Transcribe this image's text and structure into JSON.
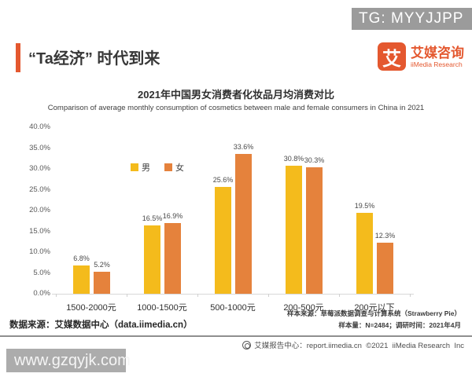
{
  "watermarks": {
    "top": "TG: MYYJJPP",
    "bottom": "www.gzqyjk.com"
  },
  "header": {
    "title": "“Ta经济” 时代到来",
    "logo": {
      "glyph": "艾",
      "name_cn": "艾媒咨询",
      "name_en": "iiMedia Research"
    }
  },
  "chart_data": {
    "type": "bar",
    "title": "2021年中国男女消费者化妆品月均消费对比",
    "subtitle": "Comparison of average monthly consumption of cosmetics between male and female consumers in China in 2021",
    "categories": [
      "1500-2000元",
      "1000-1500元",
      "500-1000元",
      "200-500元",
      "200元以下"
    ],
    "series": [
      {
        "name": "男",
        "color": "#f4bb1c",
        "values": [
          6.8,
          16.5,
          25.6,
          30.8,
          19.5
        ]
      },
      {
        "name": "女",
        "color": "#e5823c",
        "values": [
          5.2,
          16.9,
          33.6,
          30.3,
          12.3
        ]
      }
    ],
    "ylabel": "",
    "xlabel": "",
    "ylim": [
      0,
      40
    ],
    "ytick_labels": [
      "0.0%",
      "5.0%",
      "10.0%",
      "15.0%",
      "20.0%",
      "25.0%",
      "30.0%",
      "35.0%",
      "40.0%"
    ],
    "grid": false,
    "legend_position": "inside-upper-left",
    "value_label_suffix": "%"
  },
  "notes": {
    "sample_source": "样本来源：草莓派数据调查与计算系统（Strawberry Pie）",
    "sample_size": "样本量：N=2484；调研时间：2021年4月",
    "data_source": "数据来源：艾媒数据中心（data.iimedia.cn）"
  },
  "footer": {
    "text": "艾媒报告中心：report.iimedia.cn  ©2021  iiMedia Research  Inc"
  },
  "colors": {
    "accent": "#e4582f",
    "male": "#f4bb1c",
    "female": "#e5823c",
    "watermark_gray": "#9b9b9b"
  }
}
